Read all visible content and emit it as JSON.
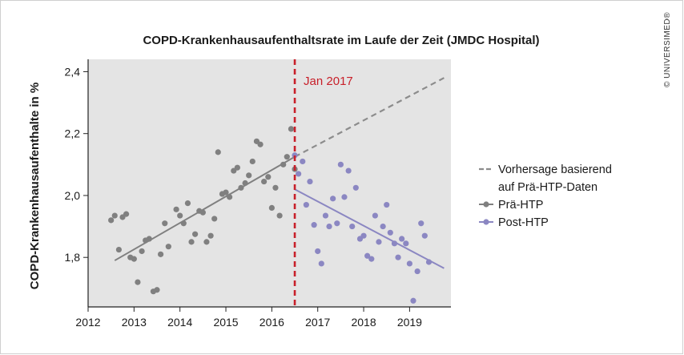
{
  "chart_data": {
    "type": "scatter",
    "title": "COPD-Krankenhausaufenthaltsrate im Laufe der Zeit (JMDC Hospital)",
    "ylabel": "COPD-Krankenhausaufenthalte in %",
    "xlabel": "",
    "xlim": [
      2012,
      2019.9
    ],
    "ylim": [
      1.64,
      2.44
    ],
    "x_ticks": [
      2012,
      2013,
      2014,
      2015,
      2016,
      2017,
      2018,
      2019
    ],
    "x_tick_labels": [
      "2012",
      "2013",
      "2014",
      "2015",
      "2016",
      "2017",
      "2018",
      "2019"
    ],
    "y_ticks": [
      1.8,
      2.0,
      2.2,
      2.4
    ],
    "y_tick_labels": [
      "1,8",
      "2,0",
      "2,2",
      "2,4"
    ],
    "grid": false,
    "legend_position": "right",
    "annotation": {
      "x": 2016.5,
      "label": "Jan 2017",
      "color": "#c8202a"
    },
    "series": [
      {
        "name": "Vorhersage basierend auf Prä-HTP-Daten",
        "legend_lines": [
          "Vorhersage basierend",
          "auf Prä-HTP-Daten"
        ],
        "kind": "trend-dashed",
        "color": "#8c8c8c",
        "line": [
          [
            2016.5,
            2.125
          ],
          [
            2019.75,
            2.38
          ]
        ]
      },
      {
        "name": "Prä-HTP",
        "kind": "points",
        "color": "#808080",
        "line": [
          [
            2012.58,
            1.79
          ],
          [
            2016.5,
            2.125
          ]
        ],
        "points": [
          [
            2012.5,
            1.92
          ],
          [
            2012.58,
            1.935
          ],
          [
            2012.67,
            1.825
          ],
          [
            2012.75,
            1.93
          ],
          [
            2012.83,
            1.94
          ],
          [
            2012.92,
            1.8
          ],
          [
            2013.0,
            1.795
          ],
          [
            2013.08,
            1.72
          ],
          [
            2013.17,
            1.82
          ],
          [
            2013.25,
            1.855
          ],
          [
            2013.33,
            1.86
          ],
          [
            2013.42,
            1.69
          ],
          [
            2013.5,
            1.695
          ],
          [
            2013.58,
            1.81
          ],
          [
            2013.67,
            1.91
          ],
          [
            2013.75,
            1.835
          ],
          [
            2013.92,
            1.955
          ],
          [
            2014.0,
            1.935
          ],
          [
            2014.08,
            1.91
          ],
          [
            2014.17,
            1.975
          ],
          [
            2014.25,
            1.85
          ],
          [
            2014.33,
            1.875
          ],
          [
            2014.42,
            1.95
          ],
          [
            2014.5,
            1.945
          ],
          [
            2014.58,
            1.85
          ],
          [
            2014.67,
            1.87
          ],
          [
            2014.75,
            1.925
          ],
          [
            2014.83,
            2.14
          ],
          [
            2014.92,
            2.005
          ],
          [
            2015.0,
            2.01
          ],
          [
            2015.08,
            1.995
          ],
          [
            2015.17,
            2.08
          ],
          [
            2015.25,
            2.09
          ],
          [
            2015.33,
            2.025
          ],
          [
            2015.42,
            2.04
          ],
          [
            2015.5,
            2.065
          ],
          [
            2015.58,
            2.11
          ],
          [
            2015.67,
            2.175
          ],
          [
            2015.75,
            2.165
          ],
          [
            2015.83,
            2.045
          ],
          [
            2015.92,
            2.06
          ],
          [
            2016.0,
            1.96
          ],
          [
            2016.08,
            2.025
          ],
          [
            2016.17,
            1.935
          ],
          [
            2016.25,
            2.1
          ],
          [
            2016.33,
            2.125
          ],
          [
            2016.42,
            2.215
          ],
          [
            2016.5,
            2.085
          ]
        ]
      },
      {
        "name": "Post-HTP",
        "kind": "points",
        "color": "#8b87c2",
        "line": [
          [
            2016.5,
            2.02
          ],
          [
            2019.75,
            1.765
          ]
        ],
        "points": [
          [
            2016.5,
            2.13
          ],
          [
            2016.58,
            2.07
          ],
          [
            2016.67,
            2.11
          ],
          [
            2016.75,
            1.97
          ],
          [
            2016.83,
            2.045
          ],
          [
            2016.92,
            1.905
          ],
          [
            2017.0,
            1.82
          ],
          [
            2017.08,
            1.78
          ],
          [
            2017.17,
            1.935
          ],
          [
            2017.25,
            1.9
          ],
          [
            2017.33,
            1.99
          ],
          [
            2017.42,
            1.91
          ],
          [
            2017.5,
            2.1
          ],
          [
            2017.58,
            1.995
          ],
          [
            2017.67,
            2.08
          ],
          [
            2017.75,
            1.9
          ],
          [
            2017.83,
            2.025
          ],
          [
            2017.92,
            1.86
          ],
          [
            2018.0,
            1.87
          ],
          [
            2018.08,
            1.805
          ],
          [
            2018.17,
            1.795
          ],
          [
            2018.25,
            1.935
          ],
          [
            2018.33,
            1.85
          ],
          [
            2018.42,
            1.9
          ],
          [
            2018.5,
            1.97
          ],
          [
            2018.58,
            1.88
          ],
          [
            2018.67,
            1.845
          ],
          [
            2018.75,
            1.8
          ],
          [
            2018.83,
            1.86
          ],
          [
            2018.92,
            1.845
          ],
          [
            2019.0,
            1.78
          ],
          [
            2019.08,
            1.66
          ],
          [
            2019.17,
            1.755
          ],
          [
            2019.25,
            1.91
          ],
          [
            2019.33,
            1.87
          ],
          [
            2019.42,
            1.785
          ]
        ]
      }
    ]
  },
  "watermark": "© UNIVERSIMED®"
}
